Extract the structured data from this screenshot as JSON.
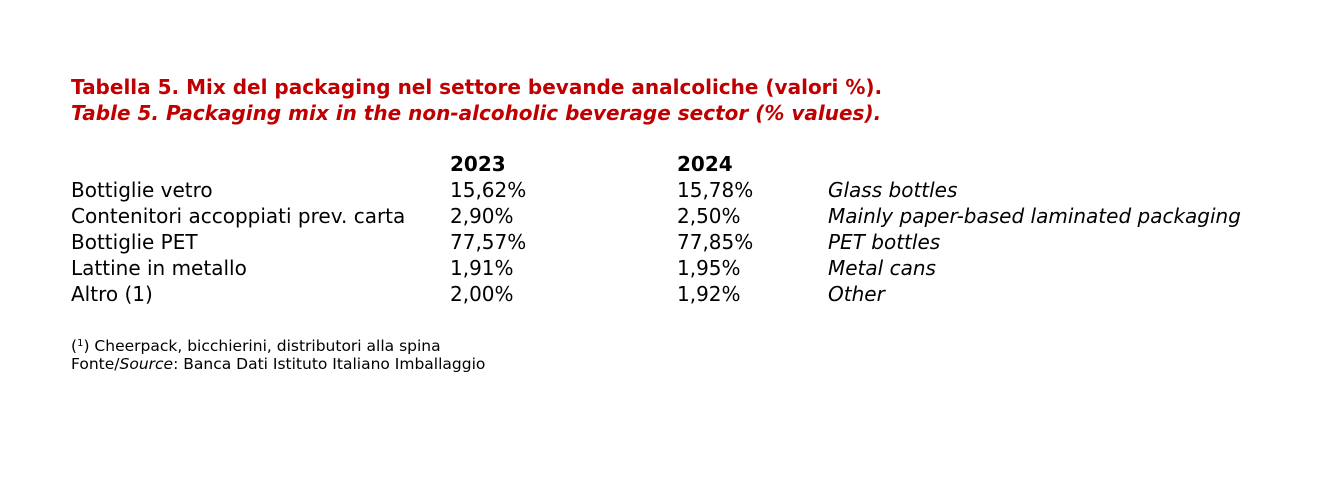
{
  "title": {
    "italian": "Tabella 5. Mix del packaging nel settore bevande analcoliche (valori %).",
    "english": "Table 5. Packaging mix in the non-alcoholic beverage sector (% values)."
  },
  "table": {
    "headers": {
      "label": "",
      "y2023": "2023",
      "y2024": "2024",
      "english": ""
    },
    "rows": [
      {
        "label": "Bottiglie vetro",
        "y2023": "15,62%",
        "y2024": "15,78%",
        "english": "Glass bottles"
      },
      {
        "label": "Contenitori accoppiati prev. carta",
        "y2023": "2,90%",
        "y2024": "2,50%",
        "english": "Mainly paper-based laminated packaging"
      },
      {
        "label": "Bottiglie PET",
        "y2023": "77,57%",
        "y2024": "77,85%",
        "english": "PET bottles"
      },
      {
        "label": "Lattine in metallo",
        "y2023": "1,91%",
        "y2024": "1,95%",
        "english": "Metal cans"
      },
      {
        "label": "Altro (1)",
        "y2023": "2,00%",
        "y2024": "1,92%",
        "english": "Other"
      }
    ]
  },
  "notes": {
    "footnote_open": "(",
    "footnote_mark": "1",
    "footnote_close": ")",
    "footnote_text": " Cheerpack, bicchierini, distributori alla spina",
    "source_prefix": "Fonte/",
    "source_italic": "Source",
    "source_text": ": Banca Dati Istituto Italiano Imballaggio"
  },
  "colors": {
    "title": "#c00000",
    "text": "#000000",
    "background": "#ffffff"
  }
}
